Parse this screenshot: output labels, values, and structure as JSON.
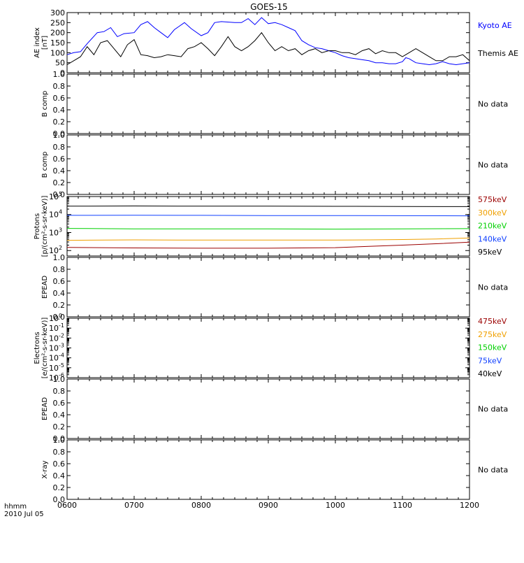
{
  "title": "GOES-15",
  "footer": {
    "format_label": "hhmm",
    "date_label": "2010 Jul 05"
  },
  "x_axis": {
    "ticks": [
      "0600",
      "0700",
      "0800",
      "0900",
      "1000",
      "1100",
      "1200"
    ],
    "range": [
      6,
      12
    ]
  },
  "colors": {
    "axes": "#000000",
    "kyoto": "#0000ff",
    "themis": "#000000",
    "red": "#9b0000",
    "orange": "#f0a000",
    "green": "#00d000",
    "blue": "#1040ff",
    "black": "#000000"
  },
  "chart_data": [
    {
      "type": "line",
      "panel": "ae",
      "ylabel_line1": "AE index",
      "ylabel_line2": "[nT]",
      "ylim": [
        0,
        300
      ],
      "yticks": [
        "0",
        "50",
        "100",
        "150",
        "200",
        "250",
        "300"
      ],
      "grid": false,
      "series": [
        {
          "name": "Kyoto AE",
          "color": "#0000ff",
          "x": [
            6.0,
            6.1,
            6.2,
            6.3,
            6.45,
            6.55,
            6.65,
            6.75,
            6.85,
            7.0,
            7.1,
            7.2,
            7.3,
            7.4,
            7.5,
            7.6,
            7.75,
            7.85,
            8.0,
            8.1,
            8.2,
            8.3,
            8.5,
            8.6,
            8.7,
            8.8,
            8.9,
            9.0,
            9.1,
            9.2,
            9.3,
            9.4,
            9.5,
            9.6,
            9.7,
            9.8,
            9.9,
            10.0,
            10.1,
            10.2,
            10.3,
            10.4,
            10.5,
            10.6,
            10.7,
            10.8,
            10.9,
            11.0,
            11.05,
            11.1,
            11.15,
            11.2,
            11.3,
            11.4,
            11.5,
            11.6,
            11.7,
            11.8,
            11.9,
            12.0
          ],
          "y": [
            90,
            100,
            105,
            145,
            200,
            205,
            225,
            180,
            195,
            200,
            240,
            255,
            225,
            200,
            175,
            215,
            250,
            220,
            185,
            200,
            250,
            255,
            250,
            250,
            270,
            240,
            275,
            245,
            250,
            240,
            225,
            210,
            160,
            140,
            125,
            120,
            110,
            100,
            85,
            75,
            70,
            65,
            60,
            50,
            50,
            45,
            45,
            55,
            75,
            70,
            60,
            50,
            45,
            40,
            45,
            55,
            45,
            40,
            45,
            50
          ]
        },
        {
          "name": "Themis AE",
          "color": "#000000",
          "x": [
            6.0,
            6.1,
            6.2,
            6.3,
            6.4,
            6.5,
            6.6,
            6.7,
            6.8,
            6.9,
            7.0,
            7.1,
            7.2,
            7.3,
            7.4,
            7.5,
            7.6,
            7.7,
            7.8,
            7.9,
            8.0,
            8.1,
            8.2,
            8.3,
            8.4,
            8.5,
            8.6,
            8.7,
            8.8,
            8.9,
            9.0,
            9.1,
            9.2,
            9.3,
            9.4,
            9.5,
            9.6,
            9.7,
            9.8,
            9.9,
            10.0,
            10.1,
            10.2,
            10.3,
            10.4,
            10.5,
            10.6,
            10.7,
            10.8,
            10.9,
            11.0,
            11.1,
            11.2,
            11.3,
            11.4,
            11.5,
            11.6,
            11.7,
            11.8,
            11.9,
            12.0
          ],
          "y": [
            40,
            60,
            80,
            130,
            90,
            150,
            160,
            120,
            80,
            140,
            165,
            90,
            85,
            75,
            80,
            90,
            85,
            80,
            120,
            130,
            150,
            120,
            85,
            130,
            180,
            130,
            110,
            130,
            160,
            200,
            150,
            110,
            130,
            110,
            120,
            90,
            110,
            120,
            100,
            110,
            110,
            100,
            100,
            90,
            110,
            120,
            95,
            110,
            100,
            100,
            80,
            100,
            120,
            100,
            80,
            60,
            60,
            80,
            80,
            90,
            60
          ]
        }
      ]
    },
    {
      "type": "line",
      "panel": "b1",
      "ylabel": "B comp",
      "ylim": [
        0,
        1
      ],
      "yticks": [
        "0.0",
        "0.2",
        "0.4",
        "0.6",
        "0.8",
        "1.0"
      ],
      "note": "No data",
      "series": []
    },
    {
      "type": "line",
      "panel": "b2",
      "ylabel": "B comp",
      "ylim": [
        0,
        1
      ],
      "yticks": [
        "0.0",
        "0.2",
        "0.4",
        "0.6",
        "0.8",
        "1.0"
      ],
      "note": "No data",
      "series": []
    },
    {
      "type": "line",
      "panel": "protons",
      "ylabel_line1": "Protons",
      "ylabel_line2": "[p/(cm²-s-sr-keV)]",
      "scale": "log",
      "ylim": [
        50,
        100000
      ],
      "yticks_exp": [
        "2",
        "3",
        "4",
        "5"
      ],
      "series": [
        {
          "name": "575keV",
          "color": "#9b0000",
          "x": [
            6,
            7,
            8,
            9,
            10,
            10.5,
            11,
            11.5,
            12
          ],
          "y": [
            150,
            140,
            135,
            135,
            145,
            170,
            200,
            240,
            290
          ]
        },
        {
          "name": "300keV",
          "color": "#f0a000",
          "x": [
            6,
            7,
            8,
            9,
            10,
            10.5,
            11,
            11.5,
            12
          ],
          "y": [
            370,
            390,
            380,
            380,
            380,
            390,
            410,
            440,
            500
          ]
        },
        {
          "name": "210keV",
          "color": "#00d000",
          "x": [
            6,
            7,
            8,
            9,
            10,
            11,
            12
          ],
          "y": [
            1700,
            1600,
            1600,
            1600,
            1550,
            1600,
            1650
          ]
        },
        {
          "name": "140keV",
          "color": "#1040ff",
          "x": [
            6,
            7,
            8,
            9,
            10,
            11,
            12
          ],
          "y": [
            9000,
            9200,
            9000,
            8800,
            8800,
            8600,
            8500
          ]
        },
        {
          "name": "95keV",
          "color": "#000000",
          "x": [
            6,
            7,
            8,
            9,
            10,
            11,
            12
          ],
          "y": [
            29000,
            30000,
            29000,
            29500,
            28500,
            28000,
            27500
          ]
        }
      ]
    },
    {
      "type": "line",
      "panel": "epead1",
      "ylabel": "EPEAD",
      "ylim": [
        0,
        1
      ],
      "yticks": [
        "0.0",
        "0.2",
        "0.4",
        "0.6",
        "0.8",
        "1.0"
      ],
      "note": "No data",
      "series": []
    },
    {
      "type": "line",
      "panel": "electrons",
      "ylabel_line1": "Electrons",
      "ylabel_line2": "[e/(cm²-s-sr-keV)]",
      "scale": "log",
      "ylim": [
        1e-06,
        1
      ],
      "yticks_exp": [
        "-6",
        "-5",
        "-4",
        "-3",
        "-2",
        "-1",
        "0"
      ],
      "series": [
        {
          "name": "475keV",
          "color": "#9b0000",
          "x": [],
          "y": []
        },
        {
          "name": "275keV",
          "color": "#f0a000",
          "x": [],
          "y": []
        },
        {
          "name": "150keV",
          "color": "#00d000",
          "x": [],
          "y": []
        },
        {
          "name": "75keV",
          "color": "#1040ff",
          "x": [],
          "y": []
        },
        {
          "name": "40keV",
          "color": "#000000",
          "x": [],
          "y": []
        }
      ]
    },
    {
      "type": "line",
      "panel": "epead2",
      "ylabel": "EPEAD",
      "ylim": [
        0,
        1
      ],
      "yticks": [
        "0.0",
        "0.2",
        "0.4",
        "0.6",
        "0.8",
        "1.0"
      ],
      "note": "No data",
      "series": []
    },
    {
      "type": "line",
      "panel": "xray",
      "ylabel": "X-ray",
      "ylim": [
        0,
        1
      ],
      "yticks": [
        "0.0",
        "0.2",
        "0.4",
        "0.6",
        "0.8",
        "1.0"
      ],
      "note": "No data",
      "series": []
    }
  ]
}
